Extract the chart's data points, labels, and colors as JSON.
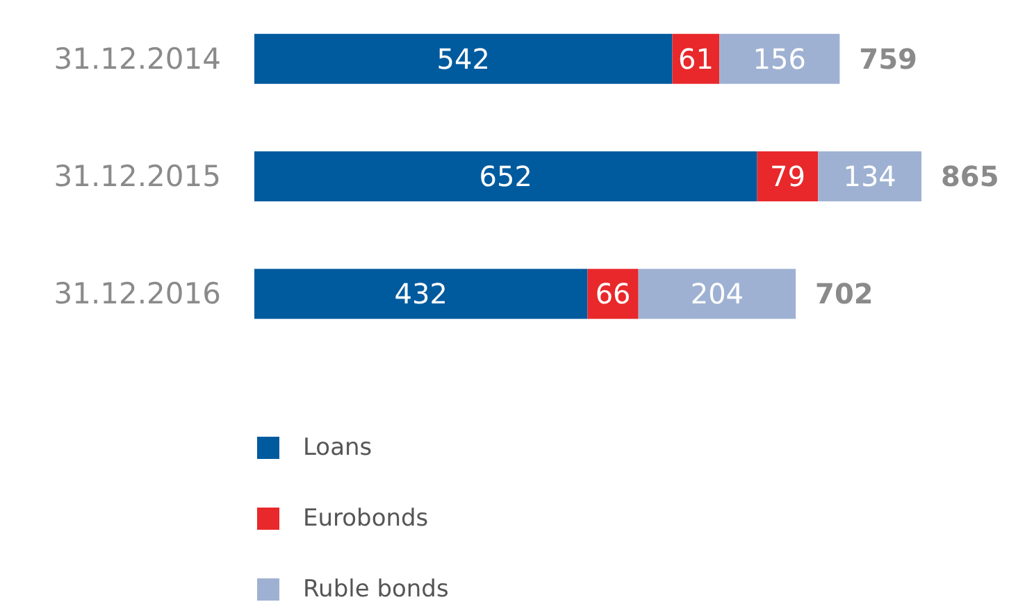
{
  "chart_data": {
    "type": "bar",
    "orientation": "horizontal",
    "stacked": true,
    "categories": [
      "31.12.2014",
      "31.12.2015",
      "31.12.2016"
    ],
    "series": [
      {
        "name": "Loans",
        "color": "#005a9e",
        "values": [
          542,
          652,
          432
        ]
      },
      {
        "name": "Eurobonds",
        "color": "#e8282b",
        "values": [
          61,
          79,
          66
        ]
      },
      {
        "name": "Ruble bonds",
        "color": "#9fb1d2",
        "values": [
          156,
          134,
          204
        ]
      }
    ],
    "data_labels": true,
    "totals": [
      "759",
      "865",
      "702"
    ],
    "legend": "bottom left"
  }
}
